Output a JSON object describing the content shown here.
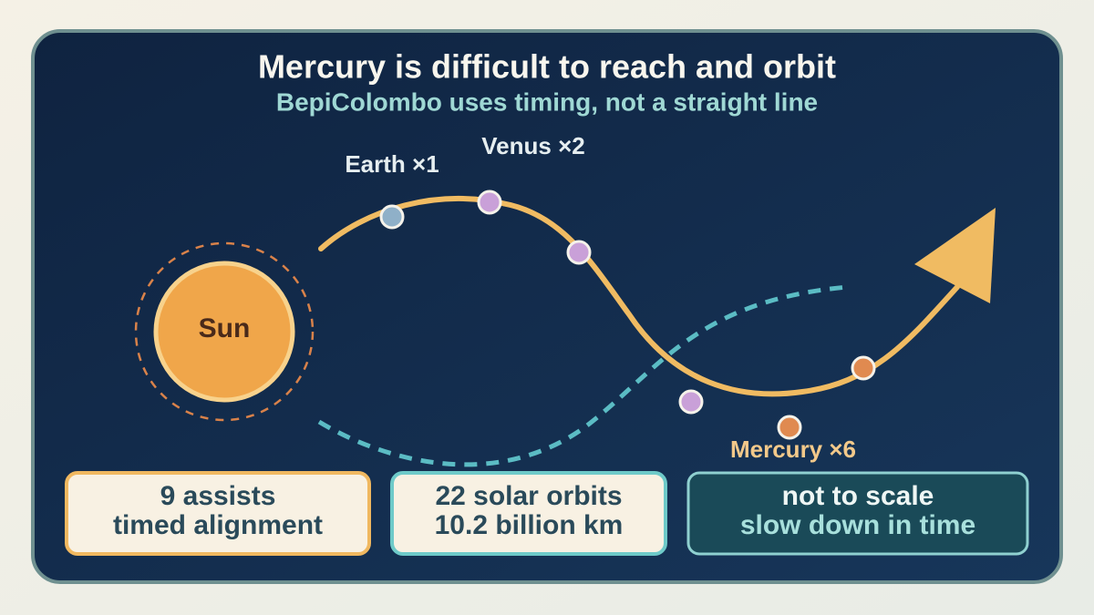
{
  "header": {
    "title": "Mercury is difficult to reach and orbit",
    "subtitle": "BepiColombo uses timing, not a straight line"
  },
  "sun": {
    "label": "Sun"
  },
  "flybys": [
    {
      "label": "Earth ×1"
    },
    {
      "label": "Venus ×2"
    },
    {
      "label": "Mercury ×6"
    }
  ],
  "cards": [
    {
      "lines": [
        "9 assists",
        "timed alignment"
      ]
    },
    {
      "lines": [
        "22 solar orbits",
        "10.2 billion km"
      ]
    },
    {
      "lines": [
        "not to scale",
        "slow down in time"
      ]
    }
  ]
}
